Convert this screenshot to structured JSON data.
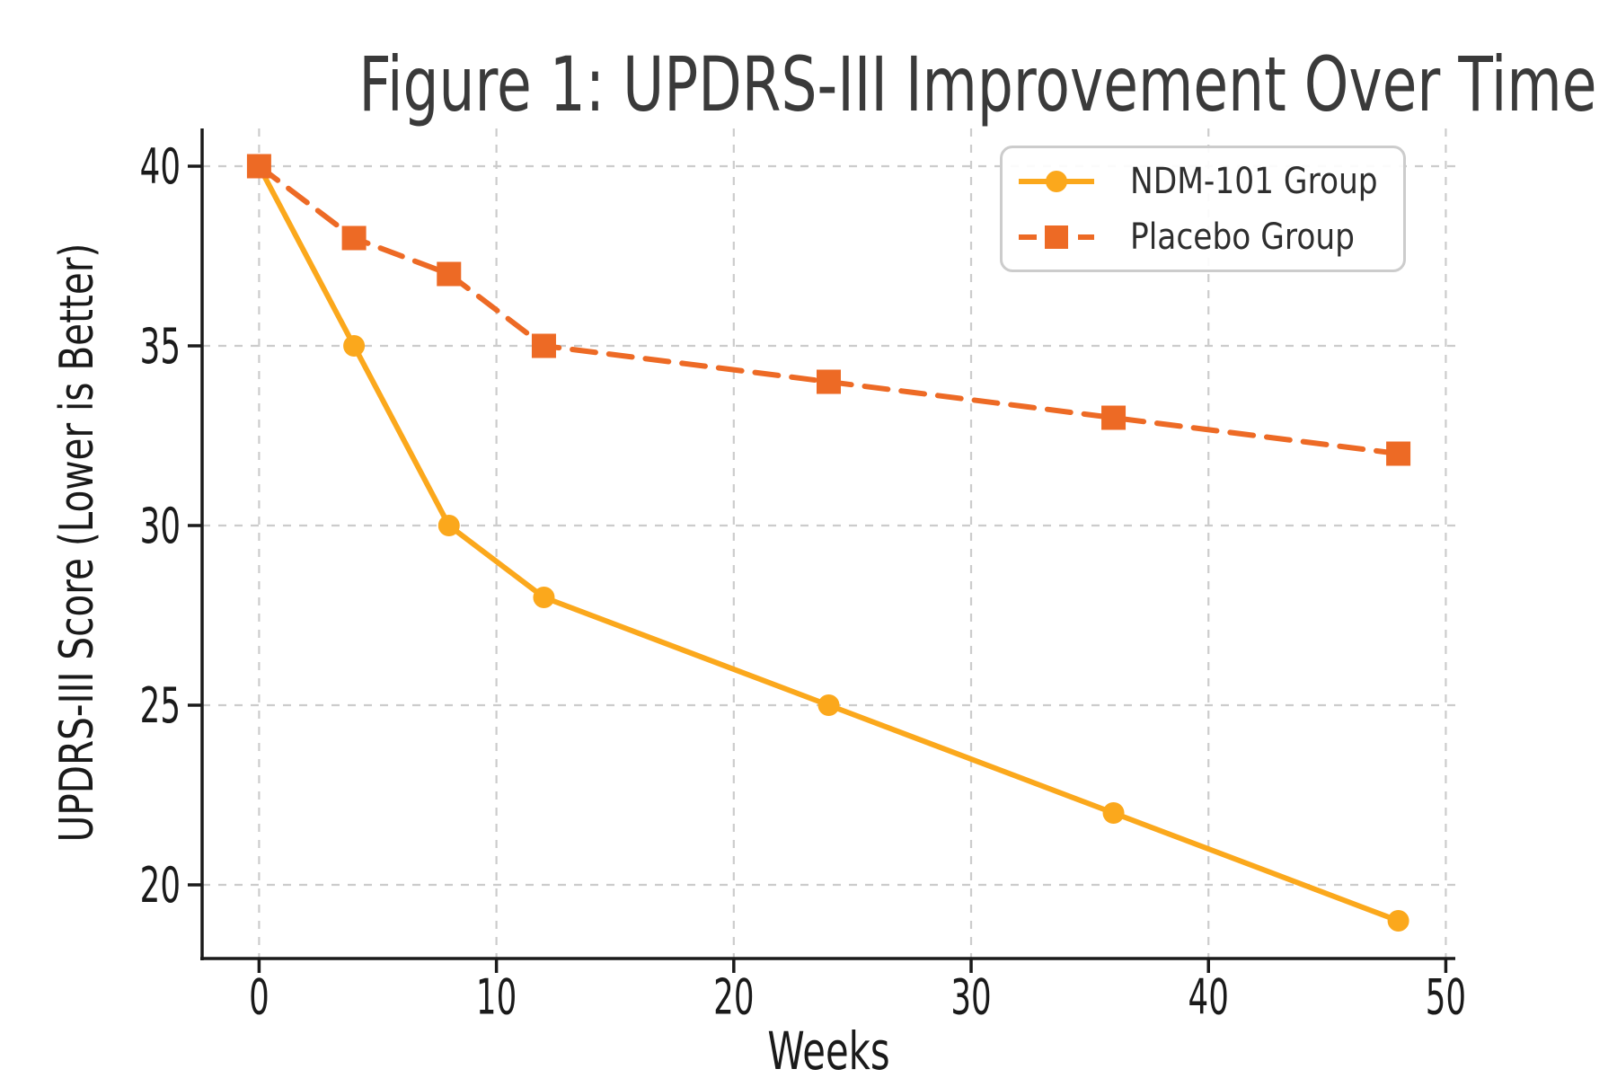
{
  "figure": {
    "background_color": "#ffffff",
    "title_color": "#3a3a3a",
    "axis_color": "#1a1a1a",
    "grid_color": "#cccccc",
    "legend_border_color": "#cccccc"
  },
  "chart_data": {
    "type": "line",
    "title": "Figure 1: UPDRS-III Improvement Over Time",
    "xlabel": "Weeks",
    "ylabel": "UPDRS-III Score (Lower is Better)",
    "x": [
      0,
      4,
      8,
      12,
      24,
      36,
      48
    ],
    "series": [
      {
        "name": "NDM-101 Group",
        "values": [
          40,
          35,
          30,
          28,
          25,
          22,
          19
        ],
        "color": "#FBA81C",
        "line_style": "solid",
        "marker": "circle"
      },
      {
        "name": "Placebo Group",
        "values": [
          40,
          38,
          37,
          35,
          34,
          33,
          32
        ],
        "color": "#ED6A25",
        "line_style": "dashed",
        "marker": "square"
      }
    ],
    "x_ticks": [
      0,
      10,
      20,
      30,
      40,
      50
    ],
    "y_ticks": [
      20,
      25,
      30,
      35,
      40
    ],
    "xlim": [
      -2.4,
      50.4
    ],
    "ylim": [
      17.95,
      41.05
    ],
    "grid": true,
    "grid_style": "dashed",
    "legend_position": "upper right"
  }
}
